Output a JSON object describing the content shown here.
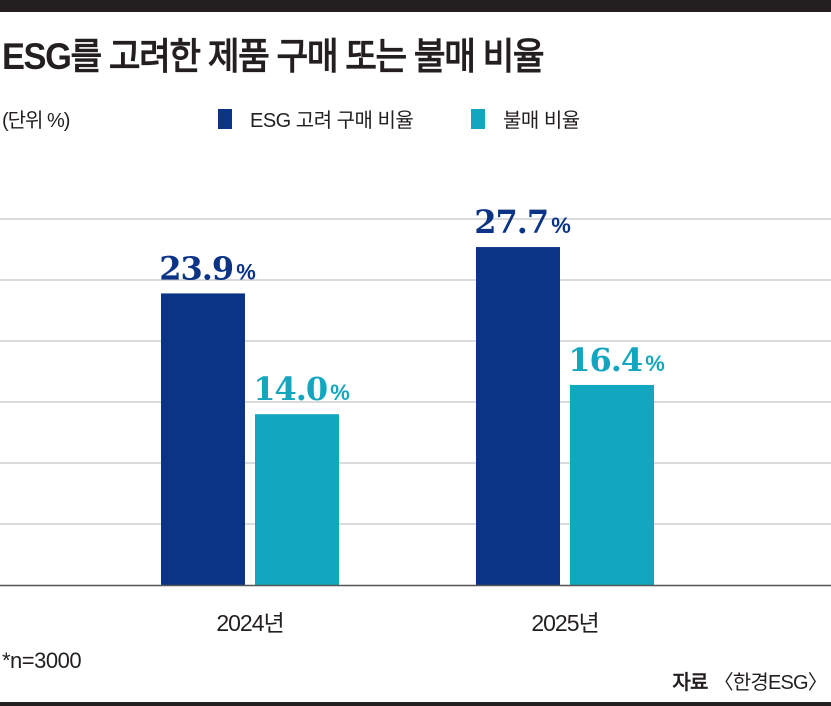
{
  "title": "ESG를 고려한 제품 구매 또는 불매 비율",
  "unit_label": "(단위 %)",
  "note": "*n=3000",
  "source_label": "자료",
  "source_name": "〈한경ESG〉",
  "colors": {
    "esg": "#0b3487",
    "boycott": "#12a7bf",
    "grid": "#b5b5b5",
    "text": "#231f20"
  },
  "chart_data": {
    "type": "bar",
    "title": "ESG를 고려한 제품 구매 또는 불매 비율",
    "categories": [
      "2024년",
      "2025년"
    ],
    "series": [
      {
        "name": "ESG 고려 구매 비율",
        "values": [
          23.9,
          27.7
        ],
        "labels": [
          "23.9",
          "27.7"
        ]
      },
      {
        "name": "불매 비율",
        "values": [
          14.0,
          16.4
        ],
        "labels": [
          "14.0",
          "16.4"
        ]
      }
    ],
    "value_suffix": "%",
    "xlabel": "",
    "ylabel": "%",
    "ylim": [
      0,
      30
    ],
    "grid_step": 5,
    "grid": true,
    "legend_position": "top"
  }
}
